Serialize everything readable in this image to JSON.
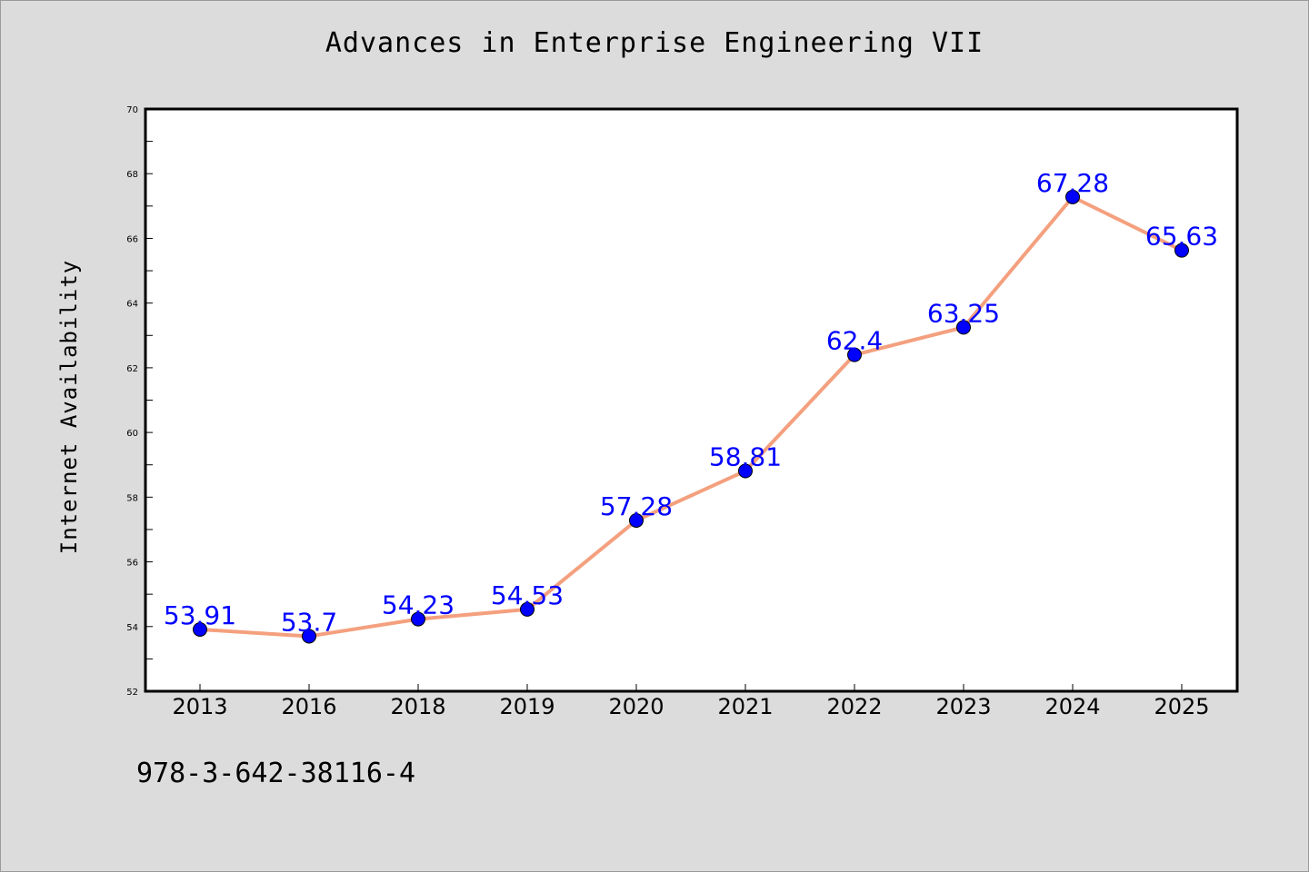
{
  "chart_data": {
    "type": "line",
    "title": "Advances in Enterprise Engineering VII",
    "xlabel": "",
    "ylabel": "Internet Availability",
    "categories": [
      "2013",
      "2016",
      "2018",
      "2019",
      "2020",
      "2021",
      "2022",
      "2023",
      "2024",
      "2025"
    ],
    "series": [
      {
        "values": [
          53.91,
          53.7,
          54.23,
          54.53,
          57.28,
          58.81,
          62.4,
          63.25,
          67.28,
          65.63
        ],
        "labels": [
          "53.91",
          "53.7",
          "54.23",
          "54.53",
          "57.28",
          "58.81",
          "62.4",
          "63.25",
          "67.28",
          "65.63"
        ],
        "line_color": "#f4a07e",
        "marker_color": "#0000ff",
        "label_color": "#0000ff"
      }
    ],
    "ylim": [
      52,
      70
    ],
    "yticks": [
      "52",
      "54",
      "56",
      "58",
      "60",
      "62",
      "64",
      "66",
      "68",
      "70"
    ],
    "grid": false,
    "legend": "none"
  },
  "footer": {
    "isbn": "978-3-642-38116-4"
  }
}
